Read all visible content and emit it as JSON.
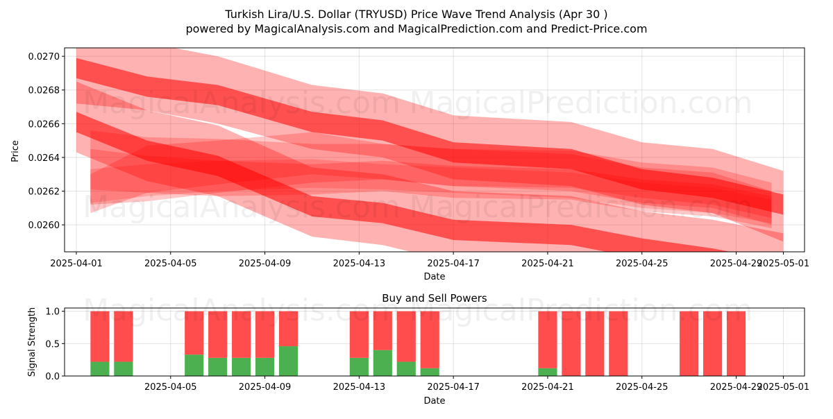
{
  "title": "Turkish Lira/U.S. Dollar (TRYUSD) Price Wave Trend Analysis (Apr 30 )",
  "subtitle": "powered by MagicalAnalysis.com and MagicalPrediction.com and Predict-Price.com",
  "watermarks": [
    "MagicalAnalysis.com",
    "MagicalPrediction.com"
  ],
  "colors": {
    "band": "#ff0000",
    "buy": "#4caf50",
    "sell": "#ff4d4d"
  },
  "chart_data": [
    {
      "type": "area",
      "name": "price-wave",
      "xlabel": "Date",
      "ylabel": "Price",
      "x_range_days": [
        -0.5,
        30.9
      ],
      "ylim": [
        0.02584,
        0.02705
      ],
      "grid": true,
      "x_ticks": [
        {
          "day": 0,
          "label": "2025-04-01"
        },
        {
          "day": 4,
          "label": "2025-04-05"
        },
        {
          "day": 8,
          "label": "2025-04-09"
        },
        {
          "day": 12,
          "label": "2025-04-13"
        },
        {
          "day": 16,
          "label": "2025-04-17"
        },
        {
          "day": 20,
          "label": "2025-04-21"
        },
        {
          "day": 24,
          "label": "2025-04-25"
        },
        {
          "day": 28,
          "label": "2025-04-29"
        },
        {
          "day": 30,
          "label": "2025-05-01"
        }
      ],
      "y_ticks": [
        {
          "value": 0.026,
          "label": "0.0260"
        },
        {
          "value": 0.0262,
          "label": "0.0262"
        },
        {
          "value": 0.0264,
          "label": "0.0264"
        },
        {
          "value": 0.0266,
          "label": "0.0266"
        },
        {
          "value": 0.0268,
          "label": "0.0268"
        },
        {
          "value": 0.027,
          "label": "0.0270"
        }
      ],
      "bands": [
        {
          "name": "upper-outer",
          "opacity": 0.3,
          "x": [
            0,
            3,
            6,
            10,
            13,
            16,
            21,
            24,
            27,
            30
          ],
          "upper": [
            0.02715,
            0.02708,
            0.027,
            0.02683,
            0.02678,
            0.02665,
            0.02661,
            0.02649,
            0.02645,
            0.02632
          ],
          "lower": [
            0.02672,
            0.02668,
            0.0266,
            0.02645,
            0.0264,
            0.02627,
            0.02623,
            0.02612,
            0.02607,
            0.0259
          ]
        },
        {
          "name": "upper-inner",
          "opacity": 0.55,
          "x": [
            0,
            3,
            6,
            10,
            13,
            16,
            21,
            24,
            27,
            30
          ],
          "upper": [
            0.02699,
            0.02688,
            0.02683,
            0.02667,
            0.02662,
            0.02649,
            0.02645,
            0.02633,
            0.02628,
            0.02618
          ],
          "lower": [
            0.02687,
            0.02676,
            0.02671,
            0.02655,
            0.0265,
            0.02637,
            0.02633,
            0.02621,
            0.02616,
            0.02606
          ]
        },
        {
          "name": "lower-outer",
          "opacity": 0.3,
          "x": [
            0,
            3,
            6,
            10,
            13,
            16,
            21,
            24,
            27,
            30
          ],
          "upper": [
            0.02685,
            0.02668,
            0.02659,
            0.02634,
            0.0263,
            0.0262,
            0.02617,
            0.02608,
            0.02603,
            0.02595
          ],
          "lower": [
            0.02643,
            0.02626,
            0.02617,
            0.02593,
            0.02588,
            0.02578,
            0.02573,
            0.02567,
            0.02561,
            0.02553
          ]
        },
        {
          "name": "lower-inner",
          "opacity": 0.55,
          "x": [
            0,
            3,
            6,
            10,
            13,
            16,
            21,
            24,
            27,
            30
          ],
          "upper": [
            0.02667,
            0.0265,
            0.02641,
            0.02617,
            0.02613,
            0.02603,
            0.026,
            0.02592,
            0.02586,
            0.02578
          ],
          "lower": [
            0.02655,
            0.02638,
            0.02629,
            0.02605,
            0.02601,
            0.02591,
            0.02588,
            0.0258,
            0.02574,
            0.02566
          ]
        },
        {
          "name": "mid-a",
          "opacity": 0.22,
          "x": [
            0.6,
            3,
            6,
            10,
            13,
            16,
            21,
            24,
            27,
            29.5
          ],
          "upper": [
            0.02656,
            0.02652,
            0.02651,
            0.02648,
            0.02648,
            0.02645,
            0.02644,
            0.02637,
            0.02634,
            0.02625
          ],
          "lower": [
            0.02612,
            0.02614,
            0.02619,
            0.02625,
            0.02627,
            0.02623,
            0.02622,
            0.02616,
            0.02612,
            0.02604
          ]
        },
        {
          "name": "mid-b",
          "opacity": 0.22,
          "x": [
            0.6,
            3,
            6,
            10,
            13,
            16,
            21,
            24,
            27,
            29.5
          ],
          "upper": [
            0.0263,
            0.02647,
            0.0265,
            0.02655,
            0.02648,
            0.02645,
            0.02642,
            0.02634,
            0.02631,
            0.0262
          ],
          "lower": [
            0.02607,
            0.02619,
            0.02624,
            0.0263,
            0.02627,
            0.02623,
            0.0262,
            0.02613,
            0.0261,
            0.026
          ]
        },
        {
          "name": "mid-c",
          "opacity": 0.22,
          "x": [
            0.6,
            3,
            6,
            10,
            13,
            16,
            21,
            24,
            27,
            29.5
          ],
          "upper": [
            0.02645,
            0.02641,
            0.02638,
            0.02636,
            0.02638,
            0.02635,
            0.02633,
            0.02627,
            0.02624,
            0.02617
          ],
          "lower": [
            0.02621,
            0.02619,
            0.02617,
            0.02618,
            0.0262,
            0.02616,
            0.02615,
            0.02608,
            0.02605,
            0.02598
          ]
        },
        {
          "name": "mid-d",
          "opacity": 0.18,
          "x": [
            0.6,
            3,
            6,
            10,
            13,
            16,
            21,
            24,
            27,
            29.5
          ],
          "upper": [
            0.02633,
            0.02636,
            0.02638,
            0.02639,
            0.02636,
            0.02634,
            0.02631,
            0.02625,
            0.02622,
            0.02615
          ],
          "lower": [
            0.02613,
            0.02617,
            0.0262,
            0.02622,
            0.02621,
            0.02619,
            0.02616,
            0.0261,
            0.02607,
            0.02601
          ]
        }
      ]
    },
    {
      "type": "bar",
      "name": "buy-sell-powers",
      "title": "Buy and Sell Powers",
      "xlabel": "Date",
      "ylabel": "Signal Strength",
      "x_range_days": [
        -0.5,
        30.9
      ],
      "ylim": [
        0,
        1.05
      ],
      "y_ticks": [
        {
          "value": 0,
          "label": "0.0"
        },
        {
          "value": 0.5,
          "label": "0.5"
        },
        {
          "value": 1,
          "label": "1.0"
        }
      ],
      "x_ticks": [
        {
          "day": 4,
          "label": "2025-04-05"
        },
        {
          "day": 8,
          "label": "2025-04-09"
        },
        {
          "day": 12,
          "label": "2025-04-13"
        },
        {
          "day": 16,
          "label": "2025-04-17"
        },
        {
          "day": 20,
          "label": "2025-04-21"
        },
        {
          "day": 24,
          "label": "2025-04-25"
        },
        {
          "day": 28,
          "label": "2025-04-29"
        },
        {
          "day": 30,
          "label": "2025-05-01"
        }
      ],
      "days": [
        1,
        2,
        5,
        6,
        7,
        8,
        9,
        12,
        13,
        14,
        15,
        20,
        21,
        22,
        23,
        26,
        27,
        28
      ],
      "series": [
        {
          "name": "Buy",
          "values": [
            0.22,
            0.22,
            0.33,
            0.28,
            0.28,
            0.28,
            0.46,
            0.28,
            0.4,
            0.22,
            0.12,
            0.12,
            0,
            0,
            0,
            0,
            0,
            0
          ]
        },
        {
          "name": "Sell",
          "values": [
            0.78,
            0.78,
            0.67,
            0.72,
            0.72,
            0.72,
            0.54,
            0.72,
            0.6,
            0.78,
            0.88,
            0.88,
            1,
            1,
            1,
            1,
            1,
            1
          ]
        }
      ]
    }
  ]
}
